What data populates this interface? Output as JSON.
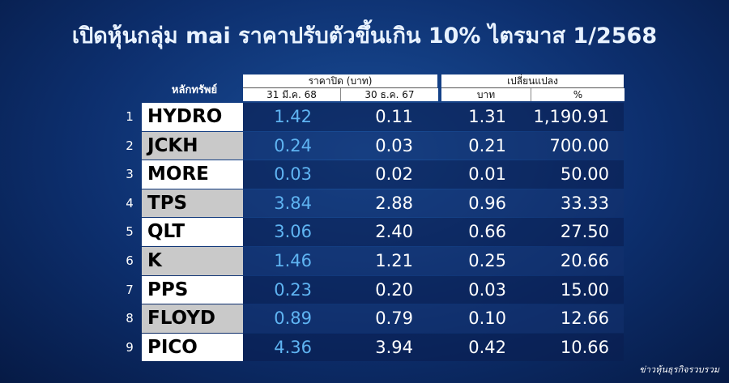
{
  "title": "เปิดหุ้นกลุ่ม mai ราคาปรับตัวขึ้นเกิน 10% ไตรมาส 1/2568",
  "table": {
    "header": {
      "security": "หลักทรัพย์",
      "close_group": "ราคาปิด (บาท)",
      "change_group": "เปลี่ยนแปลง",
      "columns": [
        "31 มี.ค. 68",
        "30 ธ.ค. 67",
        "บาท",
        "%"
      ]
    },
    "rows": [
      [
        "1",
        "HYDRO",
        "1.42",
        "0.11",
        "1.31",
        "1,190.91"
      ],
      [
        "2",
        "JCKH",
        "0.24",
        "0.03",
        "0.21",
        "700.00"
      ],
      [
        "3",
        "MORE",
        "0.03",
        "0.02",
        "0.01",
        "50.00"
      ],
      [
        "4",
        "TPS",
        "3.84",
        "2.88",
        "0.96",
        "33.33"
      ],
      [
        "5",
        "QLT",
        "3.06",
        "2.40",
        "0.66",
        "27.50"
      ],
      [
        "6",
        "K",
        "1.46",
        "1.21",
        "0.25",
        "20.66"
      ],
      [
        "7",
        "PPS",
        "0.23",
        "0.20",
        "0.03",
        "15.00"
      ],
      [
        "8",
        "FLOYD",
        "0.89",
        "0.79",
        "0.10",
        "12.66"
      ],
      [
        "9",
        "PICO",
        "4.36",
        "3.94",
        "0.42",
        "10.66"
      ]
    ]
  },
  "source": "ข่าวหุ้นธุรกิจรวบรวม"
}
